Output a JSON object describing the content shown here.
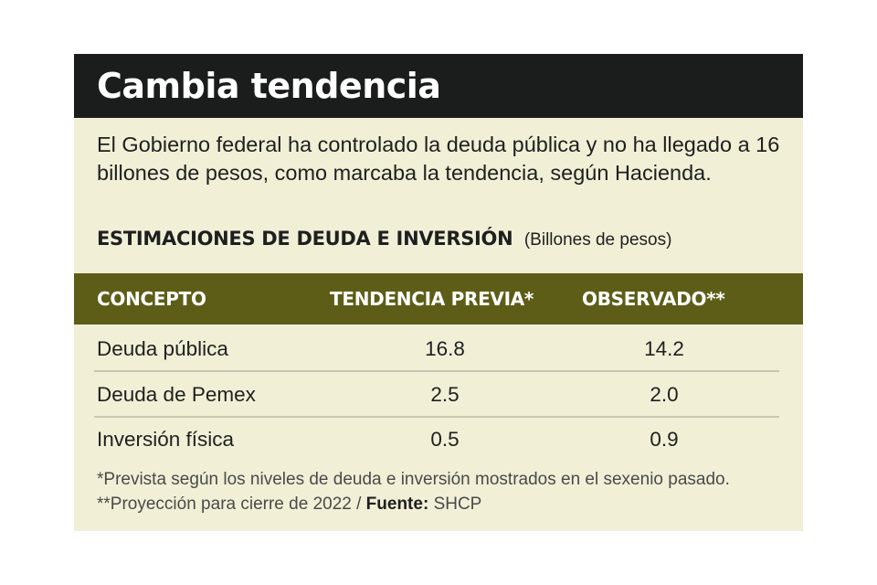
{
  "chart_data": {
    "type": "table",
    "title": "Cambia tendencia",
    "subtitle": "El Gobierno federal ha controlado la deuda pública y no ha llegado a 16 billones de pesos, como marcaba la tendencia, según Hacienda.",
    "table_title": "ESTIMACIONES DE DEUDA E INVERSIÓN",
    "unit": "(Billones de pesos)",
    "columns": [
      "CONCEPTO",
      "TENDENCIA PREVIA*",
      "OBSERVADO**"
    ],
    "rows": [
      {
        "concepto": "Deuda pública",
        "previa": "16.8",
        "observado": "14.2"
      },
      {
        "concepto": "Deuda de Pemex",
        "previa": "2.5",
        "observado": "2.0"
      },
      {
        "concepto": "Inversión física",
        "previa": "0.5",
        "observado": "0.9"
      }
    ],
    "footnote": {
      "text": "*Prevista según los niveles de deuda e inversión mostrados en el sexenio pasado. **Proyección para cierre de 2022 / ",
      "source_label": "Fuente:",
      "source": "SHCP"
    }
  },
  "colors": {
    "title_bar": "#1a1d1b",
    "header_bar": "#5d5d18",
    "background": "#f1efd6"
  }
}
